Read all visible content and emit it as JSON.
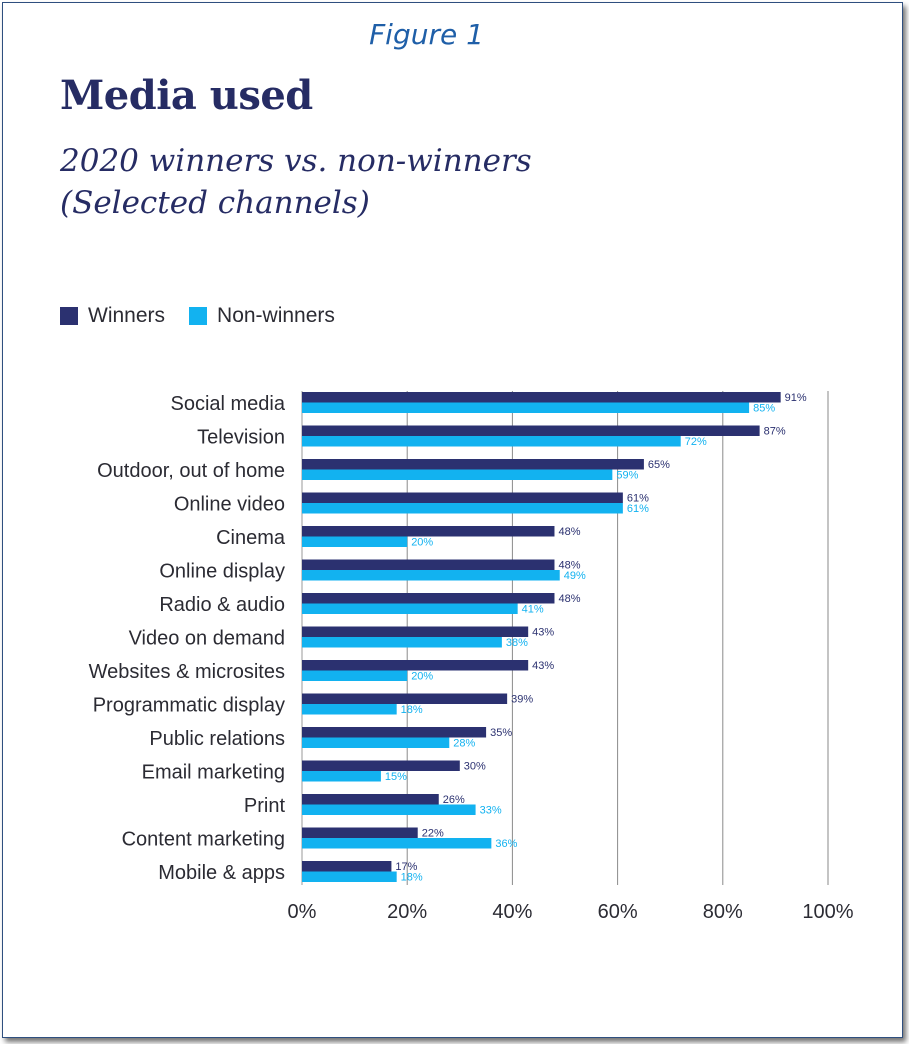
{
  "caption": "Figure 1",
  "colors": {
    "winners": "#2b3170",
    "non_winners": "#12b2f0",
    "grid": "#8a8a8a",
    "frame": "#2f4f7f"
  },
  "chart_data": {
    "type": "bar",
    "orientation": "horizontal",
    "title": "Media used",
    "subtitle_line1": "2020 winners vs. non-winners",
    "subtitle_line2": "(Selected channels)",
    "categories": [
      "Social media",
      "Television",
      "Outdoor, out of home",
      "Online video",
      "Cinema",
      "Online display",
      "Radio & audio",
      "Video on demand",
      "Websites & microsites",
      "Programmatic display",
      "Public relations",
      "Email marketing",
      "Print",
      "Content marketing",
      "Mobile & apps"
    ],
    "series": [
      {
        "name": "Winners",
        "values": [
          91,
          87,
          65,
          61,
          48,
          48,
          48,
          43,
          43,
          39,
          35,
          30,
          26,
          22,
          17
        ]
      },
      {
        "name": "Non-winners",
        "values": [
          85,
          72,
          59,
          61,
          20,
          49,
          41,
          38,
          20,
          18,
          28,
          15,
          33,
          36,
          18
        ]
      }
    ],
    "value_suffix": "%",
    "xlim": [
      0,
      100
    ],
    "xticks": [
      "0%",
      "20%",
      "40%",
      "60%",
      "80%",
      "100%"
    ],
    "grid": "vertical",
    "legend_position": "top-left"
  }
}
